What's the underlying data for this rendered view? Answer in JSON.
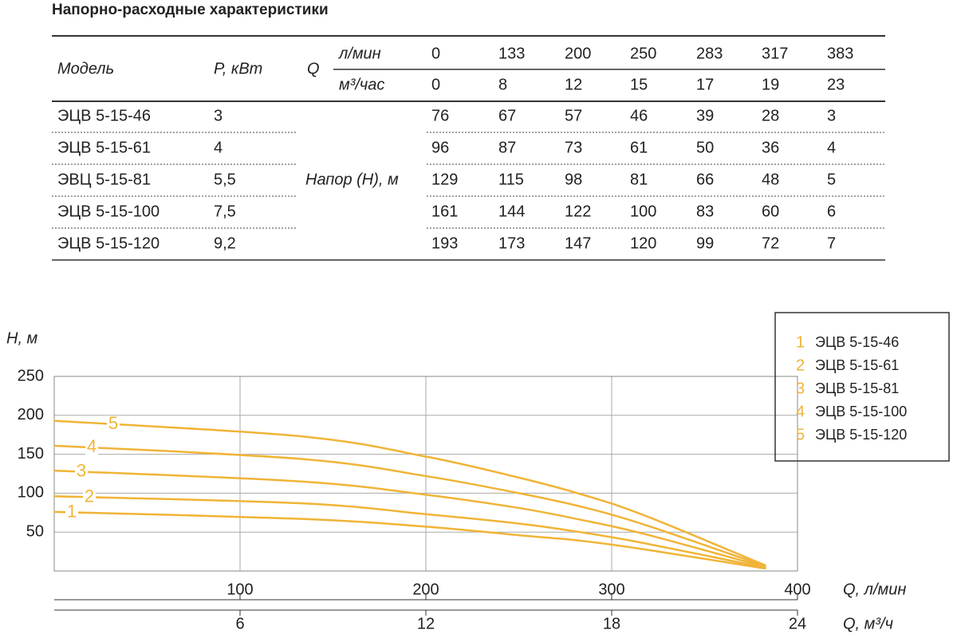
{
  "title": "Напорно-расходные характеристики",
  "table": {
    "header": {
      "model": "Модель",
      "power": "P, кВт",
      "q": "Q",
      "units": [
        "л/мин",
        "м³/час"
      ],
      "flow_lpm": [
        0,
        133,
        200,
        250,
        283,
        317,
        383
      ],
      "flow_m3h": [
        0,
        8,
        12,
        15,
        17,
        19,
        23
      ]
    },
    "head_label": "Напор (Н), м",
    "rows": [
      {
        "model": "ЭЦВ 5-15-46",
        "power": "3",
        "values": [
          76,
          67,
          57,
          46,
          39,
          28,
          3
        ]
      },
      {
        "model": "ЭЦВ 5-15-61",
        "power": "4",
        "values": [
          96,
          87,
          73,
          61,
          50,
          36,
          4
        ]
      },
      {
        "model": "ЭВЦ 5-15-81",
        "power": "5,5",
        "values": [
          129,
          115,
          98,
          81,
          66,
          48,
          5
        ]
      },
      {
        "model": "ЭЦВ 5-15-100",
        "power": "7,5",
        "values": [
          161,
          144,
          122,
          100,
          83,
          60,
          6
        ]
      },
      {
        "model": "ЭЦВ 5-15-120",
        "power": "9,2",
        "values": [
          193,
          173,
          147,
          120,
          99,
          72,
          7
        ]
      }
    ]
  },
  "chart_data": {
    "type": "line",
    "y_label": "H, м",
    "x_label": "Q, л/мин",
    "x2_label": "Q, м³/ч",
    "x": [
      0,
      133,
      200,
      250,
      283,
      317,
      383
    ],
    "xlim": [
      0,
      400
    ],
    "xticks": [
      100,
      200,
      300,
      400
    ],
    "x2lim": [
      0,
      24
    ],
    "x2ticks": [
      6,
      12,
      18,
      24
    ],
    "ylim": [
      0,
      250
    ],
    "yticks": [
      50,
      100,
      150,
      200,
      250
    ],
    "grid": true,
    "series": [
      {
        "name": "ЭЦВ 5-15-46",
        "label": "1",
        "color": "#f0b437",
        "values": [
          76,
          67,
          57,
          46,
          39,
          28,
          3
        ]
      },
      {
        "name": "ЭЦВ 5-15-61",
        "label": "2",
        "color": "#f0b437",
        "values": [
          96,
          87,
          73,
          61,
          50,
          36,
          4
        ]
      },
      {
        "name": "ЭЦВ 5-15-81",
        "label": "3",
        "color": "#f0b437",
        "values": [
          129,
          115,
          98,
          81,
          66,
          48,
          5
        ]
      },
      {
        "name": "ЭЦВ 5-15-100",
        "label": "4",
        "color": "#f0b437",
        "values": [
          161,
          144,
          122,
          100,
          83,
          60,
          6
        ]
      },
      {
        "name": "ЭЦВ 5-15-120",
        "label": "5",
        "color": "#f0b437",
        "values": [
          193,
          173,
          147,
          120,
          99,
          72,
          7
        ]
      }
    ]
  }
}
